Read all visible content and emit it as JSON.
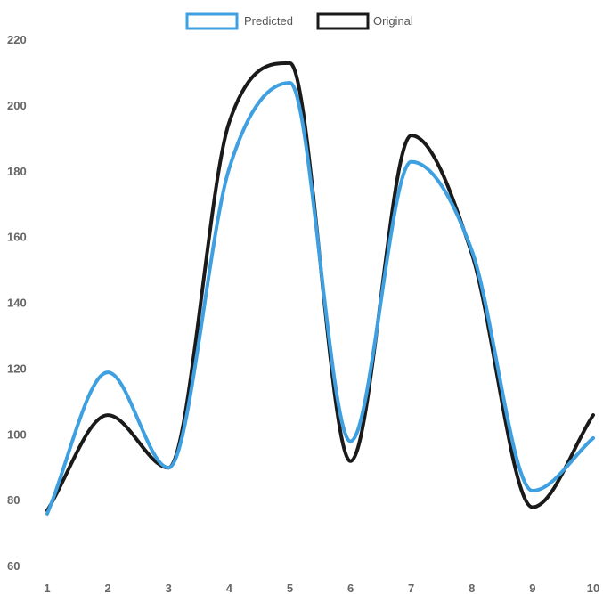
{
  "chart_data": {
    "type": "line",
    "title": "",
    "xlabel": "",
    "ylabel": "",
    "x": [
      1,
      2,
      3,
      4,
      5,
      6,
      7,
      8,
      9,
      10
    ],
    "ylim": [
      60,
      220
    ],
    "yticks": [
      60,
      80,
      100,
      120,
      140,
      160,
      180,
      200,
      220
    ],
    "legend_position": "top-center",
    "grid": false,
    "smooth": true,
    "series": [
      {
        "name": "Predicted",
        "color": "#3ea0e0",
        "values": [
          76,
          119,
          90,
          181,
          207,
          98,
          183,
          156,
          83,
          99
        ]
      },
      {
        "name": "Original",
        "color": "#1a1a1a",
        "values": [
          77,
          106,
          90,
          195,
          213,
          92,
          191,
          155,
          78,
          106
        ]
      }
    ]
  }
}
